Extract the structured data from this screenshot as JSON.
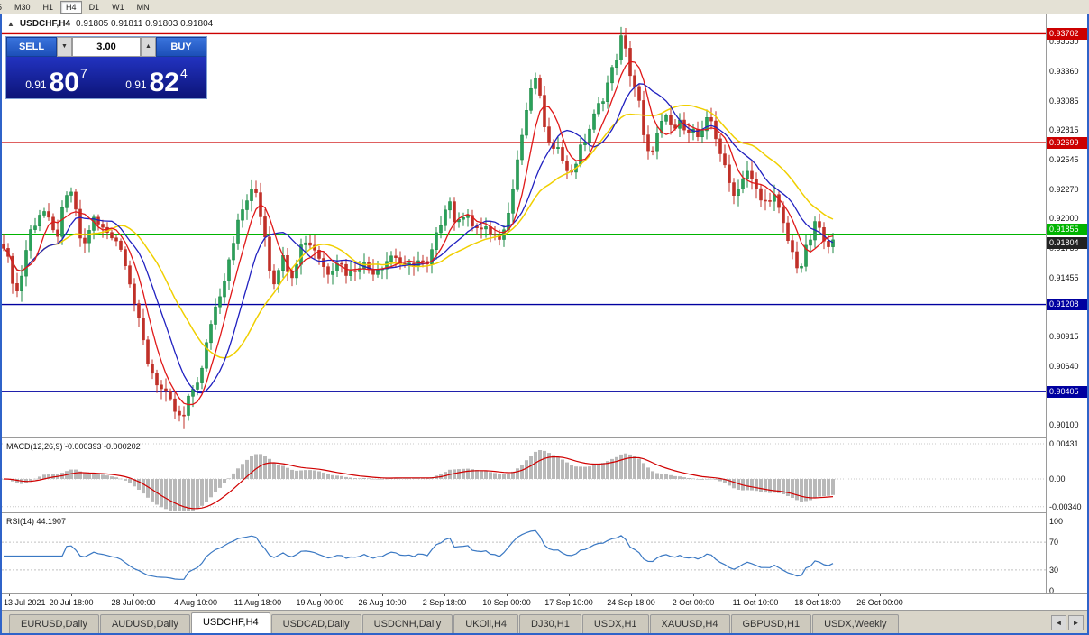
{
  "toolbar": {
    "timeframes": [
      {
        "label": "5",
        "active": false
      },
      {
        "label": "M30",
        "active": false
      },
      {
        "label": "H1",
        "active": false
      },
      {
        "label": "H4",
        "active": true
      },
      {
        "label": "D1",
        "active": false
      },
      {
        "label": "W1",
        "active": false
      },
      {
        "label": "MN",
        "active": false
      }
    ]
  },
  "chart_header": {
    "collapse_icon": "▲",
    "symbol": "USDCHF,H4",
    "ohlc": "0.91805 0.91811 0.91803 0.91804"
  },
  "trade_panel": {
    "sell_label": "SELL",
    "buy_label": "BUY",
    "volume": "3.00",
    "spin_down": "▼",
    "spin_up": "▲",
    "bid": {
      "prefix": "0.91",
      "big": "80",
      "sup": "7"
    },
    "ask": {
      "prefix": "0.91",
      "big": "82",
      "sup": "4"
    }
  },
  "indicators": {
    "macd": {
      "label": "MACD(12,26,9) -0.000393 -0.000202",
      "ticks": [
        {
          "label": "0.00431",
          "value": 0.00431
        },
        {
          "label": "0.00",
          "value": 0
        },
        {
          "label": "-0.00340",
          "value": -0.0034
        }
      ]
    },
    "rsi": {
      "label": "RSI(14) 44.1907",
      "ticks": [
        {
          "label": "100",
          "value": 100
        },
        {
          "label": "70",
          "value": 70
        },
        {
          "label": "30",
          "value": 30
        },
        {
          "label": "0",
          "value": 0
        }
      ],
      "levels": [
        70,
        30
      ]
    }
  },
  "time_axis": [
    "13 Jul 2021",
    "20 Jul 18:00",
    "28 Jul 00:00",
    "4 Aug 10:00",
    "11 Aug 18:00",
    "19 Aug 00:00",
    "26 Aug 10:00",
    "2 Sep 18:00",
    "10 Sep 00:00",
    "17 Sep 10:00",
    "24 Sep 18:00",
    "2 Oct 00:00",
    "11 Oct 10:00",
    "18 Oct 18:00",
    "26 Oct 00:00"
  ],
  "tabs": {
    "items": [
      "EURUSD,Daily",
      "AUDUSD,Daily",
      "USDCHF,H4",
      "USDCAD,Daily",
      "USDCNH,Daily",
      "UKOil,H4",
      "DJ30,H1",
      "USDX,H1",
      "XAUUSD,H4",
      "GBPUSD,H1",
      "USDX,Weekly"
    ],
    "active": "USDCHF,H4",
    "left_arrow": "◄",
    "right_arrow": "►"
  },
  "chart_data": {
    "type": "candlestick",
    "symbol": "USDCHF",
    "timeframe": "H4",
    "last_price": 0.91804,
    "price_range": {
      "min": 0.9,
      "max": 0.9378
    },
    "y_ticks": [
      0.9363,
      0.9336,
      0.93085,
      0.92815,
      0.92545,
      0.9227,
      0.92,
      0.9173,
      0.91455,
      0.90915,
      0.9064,
      0.901
    ],
    "h_levels": [
      {
        "price": 0.93702,
        "color": "#cc0000"
      },
      {
        "price": 0.92699,
        "color": "#cc0000"
      },
      {
        "price": 0.91855,
        "color": "#00b400",
        "dy": -5
      },
      {
        "price": 0.91804,
        "color": "#222222",
        "line": false,
        "dy": 4
      },
      {
        "price": 0.91208,
        "color": "#0000a0"
      },
      {
        "price": 0.90405,
        "color": "#0000a0"
      }
    ],
    "price_anchors": [
      [
        0,
        0.9185
      ],
      [
        10,
        0.915
      ],
      [
        18,
        0.913
      ],
      [
        30,
        0.9185
      ],
      [
        45,
        0.921
      ],
      [
        60,
        0.918
      ],
      [
        70,
        0.9215
      ],
      [
        77,
        0.9225
      ],
      [
        90,
        0.917
      ],
      [
        100,
        0.92
      ],
      [
        112,
        0.919
      ],
      [
        125,
        0.9185
      ],
      [
        138,
        0.916
      ],
      [
        150,
        0.911
      ],
      [
        163,
        0.9065
      ],
      [
        175,
        0.9045
      ],
      [
        188,
        0.9028
      ],
      [
        200,
        0.9012
      ],
      [
        210,
        0.904
      ],
      [
        222,
        0.906
      ],
      [
        232,
        0.9105
      ],
      [
        245,
        0.914
      ],
      [
        258,
        0.9185
      ],
      [
        270,
        0.9215
      ],
      [
        281,
        0.9228
      ],
      [
        292,
        0.9185
      ],
      [
        300,
        0.9138
      ],
      [
        310,
        0.9165
      ],
      [
        322,
        0.915
      ],
      [
        335,
        0.9182
      ],
      [
        348,
        0.9172
      ],
      [
        360,
        0.915
      ],
      [
        372,
        0.9162
      ],
      [
        385,
        0.9148
      ],
      [
        398,
        0.916
      ],
      [
        410,
        0.9152
      ],
      [
        422,
        0.9158
      ],
      [
        435,
        0.9168
      ],
      [
        448,
        0.9152
      ],
      [
        460,
        0.9162
      ],
      [
        472,
        0.9155
      ],
      [
        483,
        0.9185
      ],
      [
        495,
        0.9222
      ],
      [
        505,
        0.919
      ],
      [
        515,
        0.9212
      ],
      [
        525,
        0.9185
      ],
      [
        535,
        0.9195
      ],
      [
        545,
        0.9178
      ],
      [
        557,
        0.9188
      ],
      [
        570,
        0.9245
      ],
      [
        582,
        0.93
      ],
      [
        592,
        0.933
      ],
      [
        600,
        0.9295
      ],
      [
        610,
        0.9255
      ],
      [
        618,
        0.9272
      ],
      [
        628,
        0.9238
      ],
      [
        638,
        0.9255
      ],
      [
        648,
        0.9275
      ],
      [
        658,
        0.9295
      ],
      [
        668,
        0.9315
      ],
      [
        678,
        0.9338
      ],
      [
        688,
        0.9368
      ],
      [
        697,
        0.9335
      ],
      [
        706,
        0.9312
      ],
      [
        715,
        0.9255
      ],
      [
        725,
        0.9272
      ],
      [
        735,
        0.9292
      ],
      [
        745,
        0.9282
      ],
      [
        755,
        0.9288
      ],
      [
        765,
        0.9282
      ],
      [
        775,
        0.9272
      ],
      [
        785,
        0.9295
      ],
      [
        795,
        0.9268
      ],
      [
        805,
        0.9235
      ],
      [
        815,
        0.9222
      ],
      [
        825,
        0.9248
      ],
      [
        835,
        0.9228
      ],
      [
        845,
        0.9212
      ],
      [
        855,
        0.9225
      ],
      [
        865,
        0.9198
      ],
      [
        875,
        0.9172
      ],
      [
        885,
        0.9152
      ],
      [
        895,
        0.9178
      ],
      [
        905,
        0.9198
      ],
      [
        915,
        0.9168
      ],
      [
        925,
        0.918
      ]
    ],
    "moving_averages": [
      {
        "period": 6,
        "color": "#e01818"
      },
      {
        "period": 12,
        "color": "#2020c0"
      },
      {
        "period": 22,
        "color": "#f0cf00"
      }
    ],
    "macd": {
      "fast": 12,
      "slow": 26,
      "signal": 9,
      "value": -0.000393,
      "signal_value": -0.000202
    },
    "rsi": {
      "period": 14,
      "value": 44.1907
    }
  }
}
